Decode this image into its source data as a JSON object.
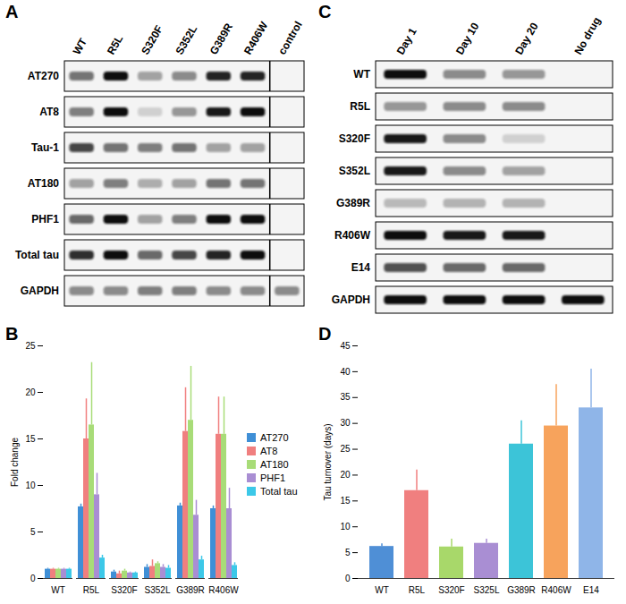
{
  "chart_data": [
    {
      "panel": "B",
      "type": "bar",
      "categories": [
        "WT",
        "R5L",
        "S320F",
        "S352L",
        "G389R",
        "R406W"
      ],
      "series": [
        {
          "name": "AT270",
          "color": "#3f8fd6",
          "values": [
            1,
            7.7,
            0.7,
            1.2,
            7.8,
            7.5
          ],
          "errors": [
            0.1,
            0.3,
            0.2,
            0.3,
            0.3,
            0.3
          ]
        },
        {
          "name": "AT8",
          "color": "#f07f7f",
          "values": [
            1,
            15,
            0.5,
            1.3,
            15.8,
            15.5
          ],
          "errors": [
            0.1,
            4.3,
            0.3,
            0.7,
            4.7,
            4
          ]
        },
        {
          "name": "AT180",
          "color": "#a8dc78",
          "values": [
            1,
            16.5,
            0.8,
            1.6,
            17,
            15.5
          ],
          "errors": [
            0.1,
            6.7,
            0.2,
            0.2,
            5.8,
            4
          ]
        },
        {
          "name": "PHF1",
          "color": "#a98ed3",
          "values": [
            1,
            9,
            0.6,
            1.2,
            6.8,
            7.5
          ],
          "errors": [
            0.1,
            2.3,
            0.1,
            0.3,
            1.6,
            2.2
          ]
        },
        {
          "name": "Total tau",
          "color": "#3cc8e8",
          "values": [
            1,
            2.2,
            0.6,
            1.1,
            2,
            1.4
          ],
          "errors": [
            0.1,
            0.3,
            0.1,
            0.3,
            0.4,
            0.3
          ]
        }
      ],
      "ylabel": "Fold change",
      "ylim": [
        0,
        25
      ],
      "yticks": [
        0,
        5,
        10,
        15,
        20,
        25
      ],
      "legend": "right"
    },
    {
      "panel": "D",
      "type": "bar",
      "categories": [
        "WT",
        "R5L",
        "S320F",
        "S325L",
        "G389R",
        "R406W",
        "E14"
      ],
      "values": [
        6.2,
        17,
        6.1,
        6.8,
        26,
        29.5,
        33
      ],
      "errors": [
        0.5,
        4,
        1.5,
        0.8,
        4.5,
        8,
        7.5
      ],
      "colors": [
        "#4f8fd6",
        "#f07f7f",
        "#a8d86a",
        "#a98ed3",
        "#3cc4d8",
        "#f7a35c",
        "#8fb5e8"
      ],
      "ylabel": "Tau turnover (days)",
      "ylim": [
        0,
        45
      ],
      "yticks": [
        0,
        5,
        10,
        15,
        20,
        25,
        30,
        35,
        40,
        45
      ]
    }
  ],
  "blots": [
    {
      "panel": "A",
      "lanes": [
        "WT",
        "R5L",
        "S320F",
        "S352L",
        "G389R",
        "R406W",
        "control"
      ],
      "rows": [
        {
          "name": "AT270",
          "intensity": [
            0.55,
            1,
            0.35,
            0.45,
            0.9,
            0.9,
            0
          ]
        },
        {
          "name": "AT8",
          "intensity": [
            0.5,
            1,
            0.15,
            0.4,
            0.95,
            1,
            0
          ]
        },
        {
          "name": "Tau-1",
          "intensity": [
            0.75,
            0.55,
            0.5,
            0.55,
            0.35,
            0.35,
            0
          ]
        },
        {
          "name": "AT180",
          "intensity": [
            0.35,
            0.5,
            0.3,
            0.35,
            0.55,
            0.55,
            0
          ]
        },
        {
          "name": "PHF1",
          "intensity": [
            0.6,
            1,
            0.35,
            0.5,
            1,
            1,
            0
          ]
        },
        {
          "name": "Total tau",
          "intensity": [
            0.85,
            1,
            0.6,
            0.75,
            0.9,
            1,
            0
          ]
        },
        {
          "name": "GAPDH",
          "intensity": [
            0.45,
            0.45,
            0.5,
            0.5,
            0.45,
            0.45,
            0.45
          ]
        }
      ]
    },
    {
      "panel": "C",
      "lanes": [
        "Day 1",
        "Day 10",
        "Day 20",
        "No drug"
      ],
      "rows": [
        {
          "name": "WT",
          "intensity": [
            1,
            0.45,
            0.4,
            0
          ]
        },
        {
          "name": "R5L",
          "intensity": [
            0.4,
            0.45,
            0.45,
            0
          ]
        },
        {
          "name": "S320F",
          "intensity": [
            0.95,
            0.45,
            0.15,
            0
          ]
        },
        {
          "name": "S352L",
          "intensity": [
            0.95,
            0.45,
            0.35,
            0
          ]
        },
        {
          "name": "G389R",
          "intensity": [
            0.25,
            0.28,
            0.28,
            0
          ]
        },
        {
          "name": "R406W",
          "intensity": [
            1,
            0.95,
            0.95,
            0
          ]
        },
        {
          "name": "E14",
          "intensity": [
            0.7,
            0.6,
            0.6,
            0
          ]
        },
        {
          "name": "GAPDH",
          "intensity": [
            1,
            1,
            1,
            1
          ]
        }
      ]
    }
  ]
}
